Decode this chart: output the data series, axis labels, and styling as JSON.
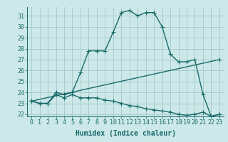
{
  "title": "",
  "xlabel": "Humidex (Indice chaleur)",
  "background_color": "#cce8e8",
  "grid_color": "#aacccc",
  "line_color": "#1a6b6b",
  "xlim": [
    -0.5,
    23.5
  ],
  "ylim": [
    21.8,
    31.8
  ],
  "yticks": [
    22,
    23,
    24,
    25,
    26,
    27,
    28,
    29,
    30,
    31
  ],
  "xticks": [
    0,
    1,
    2,
    3,
    4,
    5,
    6,
    7,
    8,
    9,
    10,
    11,
    12,
    13,
    14,
    15,
    16,
    17,
    18,
    19,
    20,
    21,
    22,
    23
  ],
  "curve1_x": [
    0,
    1,
    2,
    3,
    4,
    5,
    6,
    7,
    8,
    9,
    10,
    11,
    12,
    13,
    14,
    15,
    16,
    17,
    18,
    19,
    20,
    21,
    22,
    23
  ],
  "curve1_y": [
    23.2,
    23.0,
    23.0,
    24.0,
    23.8,
    24.0,
    25.8,
    27.8,
    27.8,
    27.8,
    29.5,
    31.3,
    31.5,
    31.0,
    31.3,
    31.3,
    30.0,
    27.5,
    26.8,
    26.8,
    27.0,
    23.8,
    21.8,
    22.0
  ],
  "curve2_x": [
    0,
    1,
    2,
    3,
    4,
    5,
    6,
    7,
    8,
    9,
    10,
    11,
    12,
    13,
    14,
    15,
    16,
    17,
    18,
    19,
    20,
    21,
    22,
    23
  ],
  "curve2_y": [
    23.2,
    23.0,
    23.0,
    23.8,
    23.5,
    23.8,
    23.5,
    23.5,
    23.5,
    23.3,
    23.2,
    23.0,
    22.8,
    22.7,
    22.5,
    22.4,
    22.3,
    22.2,
    22.0,
    21.9,
    22.0,
    22.2,
    21.8,
    22.0
  ],
  "curve3_x": [
    0,
    23
  ],
  "curve3_y": [
    23.2,
    27.0
  ],
  "marker": "+",
  "markersize": 4,
  "linewidth": 1.0,
  "tick_fontsize": 6,
  "xlabel_fontsize": 7
}
